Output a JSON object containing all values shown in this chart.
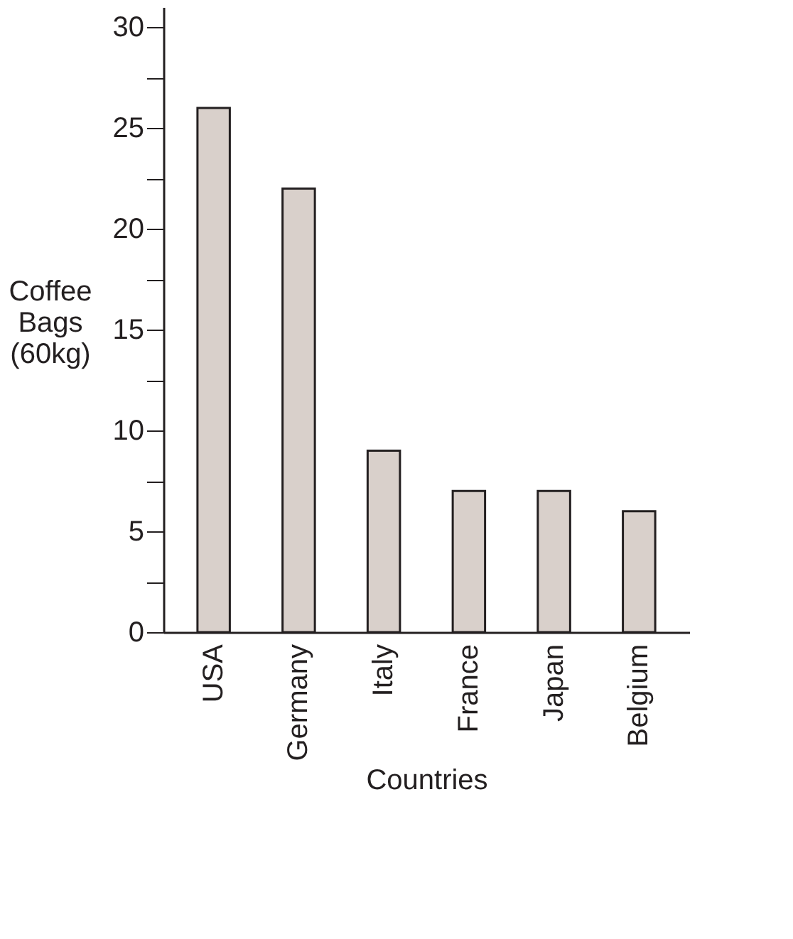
{
  "chart_data": {
    "type": "bar",
    "xlabel": "Countries",
    "ylabel": "Coffee Bags (60kg)",
    "categories": [
      "USA",
      "Germany",
      "Italy",
      "France",
      "Japan",
      "Belgium"
    ],
    "values": [
      26,
      22,
      9,
      7,
      7,
      6
    ],
    "color": "#d9d0cb",
    "ylim": [
      0,
      31
    ],
    "yticks": [
      0,
      {
        "value": 2.5,
        "label": null
      },
      5,
      {
        "value": 7.5,
        "label": null
      },
      10,
      {
        "value": 12.5,
        "label": null
      },
      15,
      {
        "value": 17.5,
        "label": null
      },
      20,
      {
        "value": 22.5,
        "label": null
      },
      25,
      {
        "value": 27.5,
        "label": null
      },
      30
    ],
    "grid": false
  }
}
